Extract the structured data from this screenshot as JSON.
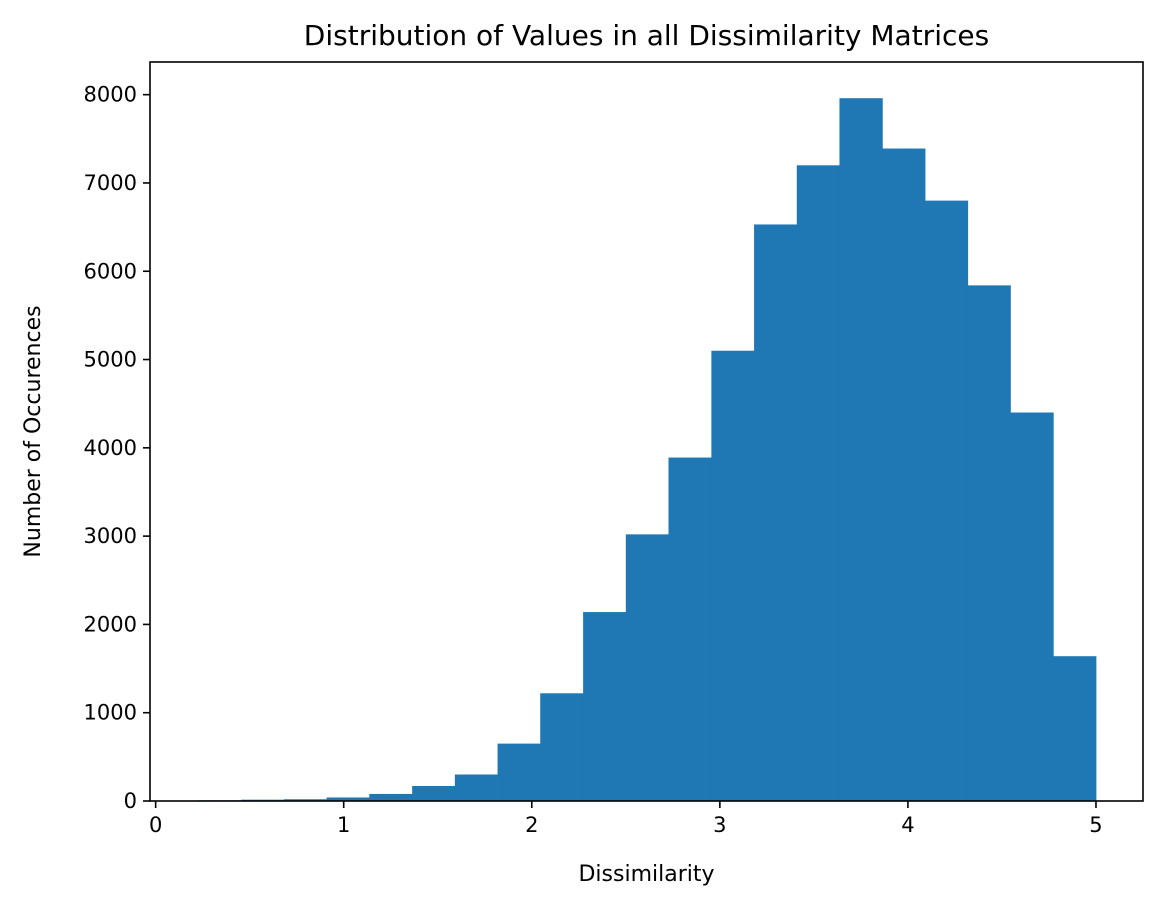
{
  "chart_data": {
    "type": "bar",
    "title": "Distribution of Values in all Dissimilarity Matrices",
    "xlabel": "Dissimilarity",
    "ylabel": "Number of Occurences",
    "xlim": [
      -0.03,
      5.25
    ],
    "ylim": [
      0,
      8370
    ],
    "xticks": [
      0,
      1,
      2,
      3,
      4,
      5
    ],
    "yticks": [
      0,
      1000,
      2000,
      3000,
      4000,
      5000,
      6000,
      7000,
      8000
    ],
    "grid": false,
    "legend": "none",
    "bar_color": "#1f77b4",
    "bin_edges": [
      0.0,
      0.227,
      0.455,
      0.682,
      0.909,
      1.136,
      1.364,
      1.591,
      1.818,
      2.045,
      2.273,
      2.5,
      2.727,
      2.955,
      3.182,
      3.409,
      3.636,
      3.864,
      4.091,
      4.318,
      4.545,
      4.773,
      5.0
    ],
    "values": [
      5,
      8,
      15,
      20,
      40,
      80,
      170,
      300,
      650,
      1220,
      2140,
      3020,
      3890,
      5100,
      6530,
      7200,
      7960,
      7390,
      6800,
      5840,
      4400,
      1640
    ]
  }
}
